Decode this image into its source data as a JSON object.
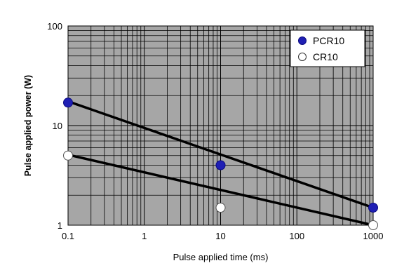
{
  "chart_data": {
    "type": "scatter",
    "title": "",
    "xlabel": "Pulse applied time (ms)",
    "ylabel": "Pulse applied power (W)",
    "xscale": "log",
    "yscale": "log",
    "xlim": [
      0.1,
      1000
    ],
    "ylim": [
      1,
      100
    ],
    "x_ticks": [
      "0.1",
      "1",
      "10",
      "100",
      "1000"
    ],
    "y_ticks": [
      "1",
      "10",
      "100"
    ],
    "grid": true,
    "plot_background": "#a6a6a6",
    "legend_position": "top-right",
    "series": [
      {
        "name": "PCR10",
        "marker": "filled-circle",
        "color": "#1f1fb4",
        "points": [
          {
            "x": 0.1,
            "y": 17
          },
          {
            "x": 10,
            "y": 4
          },
          {
            "x": 1000,
            "y": 1.5
          }
        ],
        "trend_line": {
          "x": [
            0.1,
            1000
          ],
          "y": [
            17.5,
            1.5
          ]
        }
      },
      {
        "name": "CR10",
        "marker": "open-circle",
        "color": "#ffffff",
        "points": [
          {
            "x": 0.1,
            "y": 5
          },
          {
            "x": 10,
            "y": 1.5
          },
          {
            "x": 1000,
            "y": 1.0
          }
        ],
        "trend_line": {
          "x": [
            0.1,
            1000
          ],
          "y": [
            5.1,
            1.0
          ]
        }
      }
    ]
  }
}
